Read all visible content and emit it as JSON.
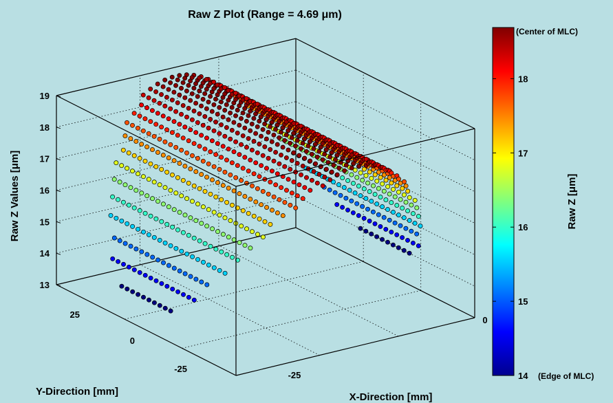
{
  "chart_data": {
    "type": "scatter",
    "title": "Raw Z Plot (Range = 4.69 μm)",
    "xlabel": "X-Direction [mm]",
    "ylabel": "Y-Direction [mm]",
    "zlabel": "Raw Z Values [μm]",
    "x_ticks": [
      "-25",
      "0"
    ],
    "y_ticks": [
      "25",
      "0",
      "-25"
    ],
    "z_ticks": [
      "13",
      "14",
      "15",
      "16",
      "17",
      "18",
      "19"
    ],
    "zlim": [
      13,
      19
    ],
    "grid": true,
    "surface": {
      "description_model": "z = z_max - k*x^2 (dome along Y), colored by z",
      "z_max": 18.7,
      "z_min": 14.0,
      "range": 4.69,
      "x_extent": [
        -45,
        45
      ],
      "y_extent": [
        -45,
        45
      ]
    },
    "colorbar": {
      "label": "Raw Z [μm]",
      "ticks": [
        "14",
        "15",
        "16",
        "17",
        "18"
      ],
      "range": [
        14,
        18.69
      ],
      "top_annotation": "(Center of MLC)",
      "bottom_annotation": "(Edge of MLC)",
      "colormap": "jet"
    }
  },
  "colors": {
    "background": "#b9dfe3",
    "axes": "#000000"
  }
}
